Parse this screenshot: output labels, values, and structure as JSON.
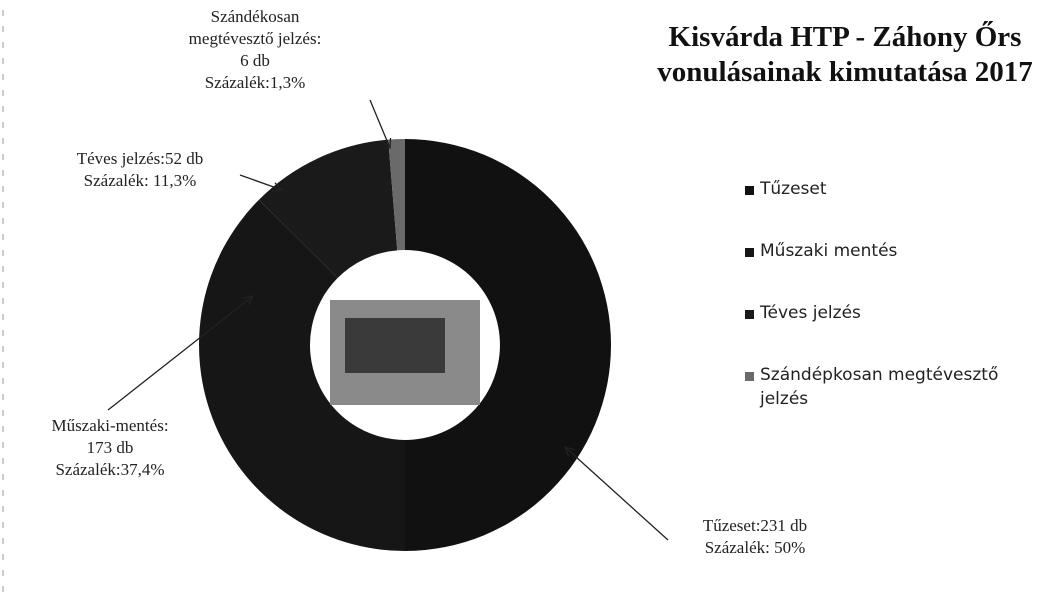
{
  "chart_data": {
    "type": "donut",
    "title": "Kisvárda HTP - Záhony Őrs vonulásainak kimutatása 2017",
    "categories": [
      "Tűzeset",
      "Műszaki mentés",
      "Téves jelzés",
      "Szándépkosan megtévesztő jelzés"
    ],
    "values": [
      231,
      173,
      52,
      6
    ],
    "value_labels": [
      "Tűzeset:231 db\nSzázalék: 50%",
      "Műszaki-mentés:\n173 db\nSzázalék:37,4%",
      "Téves jelzés:52 db\nSzázalék: 11,3%",
      "Szándékosan\nmegtévesztő jelzés:\n6 db\nSzázalék:1,3%"
    ],
    "colors": [
      "#111111",
      "#161616",
      "#1a1a1a",
      "#6a6a6a"
    ]
  }
}
